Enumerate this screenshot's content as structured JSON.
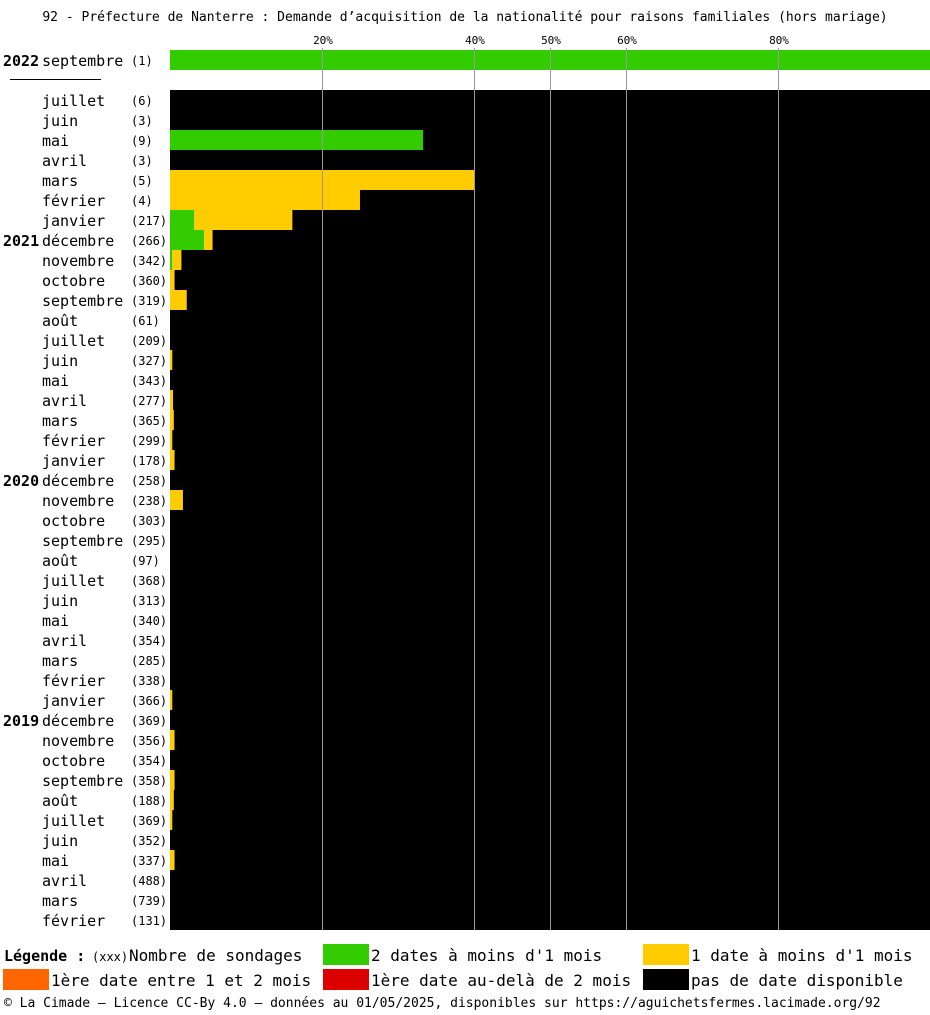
{
  "title": "92 - Préfecture de Nanterre : Demande d’acquisition de la nationalité pour raisons familiales (hors mariage)",
  "colors": {
    "green": "#33cc00",
    "yellow": "#ffcc00",
    "orange": "#ff6600",
    "red": "#dd0000",
    "black": "#000000",
    "gridline": "#999999"
  },
  "legend": {
    "title": "Légende :",
    "count_hint": "(xxx)",
    "count_label": "Nombre de sondages",
    "green_label": "2 dates à moins d'1 mois",
    "yellow_label": "1 date à moins d'1 mois",
    "orange_label": "1ère date entre 1 et 2 mois",
    "red_label": "1ère date au-delà de 2 mois",
    "black_label": "pas de date disponible"
  },
  "footer": "© La Cimade – Licence CC-By 4.0 – données au 01/05/2025, disponibles sur https://aguichetsfermes.lacimade.org/92",
  "chart_data": {
    "type": "bar",
    "orientation": "horizontal-stacked-100",
    "x_ticks": [
      "20%",
      "40%",
      "50%",
      "60%",
      "80%"
    ],
    "xlim": [
      0,
      100
    ],
    "series_order": [
      "green",
      "yellow",
      "orange",
      "red",
      "black"
    ],
    "rows": [
      {
        "year": "2022",
        "month": "septembre",
        "count": "(1)",
        "green": 100,
        "yellow": 0,
        "orange": 0,
        "red": 0,
        "black": 0
      },
      {
        "year": "",
        "month": "juillet",
        "count": "(6)",
        "green": 0,
        "yellow": 0,
        "orange": 0,
        "red": 0,
        "black": 100
      },
      {
        "year": "",
        "month": "juin",
        "count": "(3)",
        "green": 0,
        "yellow": 0,
        "orange": 0,
        "red": 0,
        "black": 100
      },
      {
        "year": "",
        "month": "mai",
        "count": "(9)",
        "green": 33.3,
        "yellow": 0,
        "orange": 0,
        "red": 0,
        "black": 66.7
      },
      {
        "year": "",
        "month": "avril",
        "count": "(3)",
        "green": 0,
        "yellow": 0,
        "orange": 0,
        "red": 0,
        "black": 100
      },
      {
        "year": "",
        "month": "mars",
        "count": "(5)",
        "green": 0,
        "yellow": 40,
        "orange": 0,
        "red": 0,
        "black": 60
      },
      {
        "year": "",
        "month": "février",
        "count": "(4)",
        "green": 0,
        "yellow": 25,
        "orange": 0,
        "red": 0,
        "black": 75
      },
      {
        "year": "",
        "month": "janvier",
        "count": "(217)",
        "green": 3.2,
        "yellow": 12.9,
        "orange": 0,
        "red": 0,
        "black": 83.9
      },
      {
        "year": "2021",
        "month": "décembre",
        "count": "(266)",
        "green": 4.5,
        "yellow": 1.1,
        "orange": 0,
        "red": 0,
        "black": 94.4
      },
      {
        "year": "",
        "month": "novembre",
        "count": "(342)",
        "green": 0.3,
        "yellow": 1.2,
        "orange": 0,
        "red": 0,
        "black": 98.5
      },
      {
        "year": "",
        "month": "octobre",
        "count": "(360)",
        "green": 0,
        "yellow": 0.6,
        "orange": 0,
        "red": 0,
        "black": 99.4
      },
      {
        "year": "",
        "month": "septembre",
        "count": "(319)",
        "green": 0,
        "yellow": 2.2,
        "orange": 0,
        "red": 0,
        "black": 97.8
      },
      {
        "year": "",
        "month": "août",
        "count": "(61)",
        "green": 0,
        "yellow": 0,
        "orange": 0,
        "red": 0,
        "black": 100
      },
      {
        "year": "",
        "month": "juillet",
        "count": "(209)",
        "green": 0,
        "yellow": 0,
        "orange": 0,
        "red": 0,
        "black": 100
      },
      {
        "year": "",
        "month": "juin",
        "count": "(327)",
        "green": 0,
        "yellow": 0.3,
        "orange": 0,
        "red": 0,
        "black": 99.7
      },
      {
        "year": "",
        "month": "mai",
        "count": "(343)",
        "green": 0,
        "yellow": 0,
        "orange": 0,
        "red": 0,
        "black": 100
      },
      {
        "year": "",
        "month": "avril",
        "count": "(277)",
        "green": 0,
        "yellow": 0.4,
        "orange": 0,
        "red": 0,
        "black": 99.6
      },
      {
        "year": "",
        "month": "mars",
        "count": "(365)",
        "green": 0,
        "yellow": 0.5,
        "orange": 0,
        "red": 0,
        "black": 99.5
      },
      {
        "year": "",
        "month": "février",
        "count": "(299)",
        "green": 0,
        "yellow": 0.3,
        "orange": 0,
        "red": 0,
        "black": 99.7
      },
      {
        "year": "",
        "month": "janvier",
        "count": "(178)",
        "green": 0,
        "yellow": 0.6,
        "orange": 0,
        "red": 0,
        "black": 99.4
      },
      {
        "year": "2020",
        "month": "décembre",
        "count": "(258)",
        "green": 0,
        "yellow": 0,
        "orange": 0,
        "red": 0,
        "black": 100
      },
      {
        "year": "",
        "month": "novembre",
        "count": "(238)",
        "green": 0,
        "yellow": 1.7,
        "orange": 0,
        "red": 0,
        "black": 98.3
      },
      {
        "year": "",
        "month": "octobre",
        "count": "(303)",
        "green": 0,
        "yellow": 0,
        "orange": 0,
        "red": 0,
        "black": 100
      },
      {
        "year": "",
        "month": "septembre",
        "count": "(295)",
        "green": 0,
        "yellow": 0,
        "orange": 0,
        "red": 0,
        "black": 100
      },
      {
        "year": "",
        "month": "août",
        "count": "(97)",
        "green": 0,
        "yellow": 0,
        "orange": 0,
        "red": 0,
        "black": 100
      },
      {
        "year": "",
        "month": "juillet",
        "count": "(368)",
        "green": 0,
        "yellow": 0,
        "orange": 0,
        "red": 0,
        "black": 100
      },
      {
        "year": "",
        "month": "juin",
        "count": "(313)",
        "green": 0,
        "yellow": 0,
        "orange": 0,
        "red": 0,
        "black": 100
      },
      {
        "year": "",
        "month": "mai",
        "count": "(340)",
        "green": 0,
        "yellow": 0,
        "orange": 0,
        "red": 0,
        "black": 100
      },
      {
        "year": "",
        "month": "avril",
        "count": "(354)",
        "green": 0,
        "yellow": 0,
        "orange": 0,
        "red": 0,
        "black": 100
      },
      {
        "year": "",
        "month": "mars",
        "count": "(285)",
        "green": 0,
        "yellow": 0,
        "orange": 0,
        "red": 0,
        "black": 100
      },
      {
        "year": "",
        "month": "février",
        "count": "(338)",
        "green": 0,
        "yellow": 0,
        "orange": 0,
        "red": 0,
        "black": 100
      },
      {
        "year": "",
        "month": "janvier",
        "count": "(366)",
        "green": 0,
        "yellow": 0.3,
        "orange": 0,
        "red": 0,
        "black": 99.7
      },
      {
        "year": "2019",
        "month": "décembre",
        "count": "(369)",
        "green": 0,
        "yellow": 0,
        "orange": 0,
        "red": 0,
        "black": 100
      },
      {
        "year": "",
        "month": "novembre",
        "count": "(356)",
        "green": 0,
        "yellow": 0.6,
        "orange": 0,
        "red": 0,
        "black": 99.4
      },
      {
        "year": "",
        "month": "octobre",
        "count": "(354)",
        "green": 0,
        "yellow": 0,
        "orange": 0,
        "red": 0,
        "black": 100
      },
      {
        "year": "",
        "month": "septembre",
        "count": "(358)",
        "green": 0,
        "yellow": 0.6,
        "orange": 0,
        "red": 0,
        "black": 99.4
      },
      {
        "year": "",
        "month": "août",
        "count": "(188)",
        "green": 0,
        "yellow": 0.5,
        "orange": 0,
        "red": 0,
        "black": 99.5
      },
      {
        "year": "",
        "month": "juillet",
        "count": "(369)",
        "green": 0,
        "yellow": 0.3,
        "orange": 0,
        "red": 0,
        "black": 99.7
      },
      {
        "year": "",
        "month": "juin",
        "count": "(352)",
        "green": 0,
        "yellow": 0,
        "orange": 0,
        "red": 0,
        "black": 100
      },
      {
        "year": "",
        "month": "mai",
        "count": "(337)",
        "green": 0,
        "yellow": 0.6,
        "orange": 0,
        "red": 0,
        "black": 99.4
      },
      {
        "year": "",
        "month": "avril",
        "count": "(488)",
        "green": 0,
        "yellow": 0,
        "orange": 0,
        "red": 0,
        "black": 100
      },
      {
        "year": "",
        "month": "mars",
        "count": "(739)",
        "green": 0,
        "yellow": 0,
        "orange": 0,
        "red": 0,
        "black": 100
      },
      {
        "year": "",
        "month": "février",
        "count": "(131)",
        "green": 0,
        "yellow": 0,
        "orange": 0,
        "red": 0,
        "black": 100
      }
    ]
  }
}
